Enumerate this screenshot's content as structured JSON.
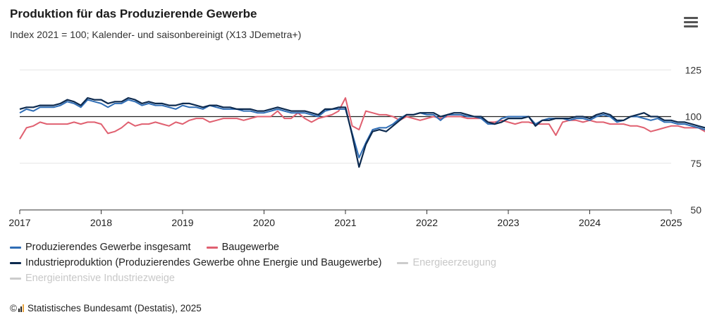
{
  "header": {
    "title": "Produktion für das Produzierende Gewerbe",
    "subtitle": "Index 2021 = 100; Kalender- und saisonbereinigt (X13 JDemetra+)",
    "menu_icon": "hamburger-menu-icon"
  },
  "source": {
    "copyright": "©",
    "text": "Statistisches Bundesamt (Destatis), 2025",
    "logo_icon": "destatis-logo-icon"
  },
  "colors": {
    "gesamt": "#2f6db5",
    "bau": "#e06070",
    "industrie": "#0d2a4f",
    "disabled": "#cccccc",
    "reference": "#222222",
    "grid": "#e6e6e6"
  },
  "chart_data": {
    "type": "line",
    "x_start": "2017-01",
    "frequency": "monthly",
    "x_ticks": [
      "2017",
      "2018",
      "2019",
      "2020",
      "2021",
      "2022",
      "2023",
      "2024",
      "2025"
    ],
    "y_ticks": [
      "50",
      "75",
      "100",
      "125"
    ],
    "ylim": [
      50,
      130
    ],
    "reference_line": 100,
    "grid": true,
    "legend_position": "bottom",
    "series": [
      {
        "name": "Produzierendes Gewerbe insgesamt",
        "color": "#2f6db5",
        "visible": true,
        "values": [
          102,
          104,
          103,
          105,
          105,
          105,
          106,
          108,
          107,
          105,
          109,
          108,
          107,
          105,
          107,
          107,
          109,
          108,
          106,
          107,
          106,
          106,
          105,
          104,
          106,
          105,
          105,
          104,
          106,
          105,
          104,
          104,
          104,
          103,
          103,
          102,
          102,
          103,
          104,
          103,
          102,
          102,
          102,
          101,
          100,
          103,
          104,
          104,
          104,
          91,
          78,
          86,
          93,
          94,
          94,
          96,
          99,
          101,
          101,
          102,
          101,
          101,
          98,
          101,
          101,
          101,
          100,
          100,
          99,
          96,
          96,
          99,
          100,
          100,
          100,
          100,
          96,
          98,
          99,
          99,
          99,
          98,
          99,
          99,
          98,
          100,
          101,
          100,
          97,
          98,
          100,
          100,
          99,
          98,
          99,
          97,
          97,
          96,
          96,
          95,
          94,
          93,
          95,
          95,
          94,
          94,
          92,
          93,
          92,
          92,
          93,
          92,
          92,
          91,
          92,
          91,
          92,
          92,
          92,
          92,
          91,
          93
        ],
        "labeled_values": []
      },
      {
        "name": "Baugewerbe",
        "color": "#e06070",
        "visible": true,
        "values": [
          88,
          94,
          95,
          97,
          96,
          96,
          96,
          96,
          97,
          96,
          97,
          97,
          96,
          91,
          92,
          94,
          97,
          95,
          96,
          96,
          97,
          96,
          95,
          97,
          96,
          98,
          99,
          99,
          97,
          98,
          99,
          99,
          99,
          98,
          99,
          100,
          100,
          100,
          103,
          99,
          99,
          102,
          99,
          97,
          99,
          100,
          101,
          103,
          110,
          95,
          93,
          103,
          102,
          101,
          101,
          100,
          98,
          100,
          99,
          98,
          99,
          100,
          99,
          100,
          100,
          100,
          99,
          99,
          99,
          97,
          97,
          98,
          97,
          96,
          97,
          97,
          96,
          96,
          96,
          90,
          97,
          98,
          98,
          97,
          98,
          97,
          97,
          96,
          96,
          96,
          95,
          95,
          94,
          92,
          93,
          94,
          95,
          95,
          94,
          94,
          94,
          92,
          92,
          92,
          93,
          91,
          92,
          91,
          91,
          91,
          92,
          92,
          92,
          91,
          91,
          92,
          91,
          92,
          92,
          91,
          92,
          93
        ],
        "labeled_values": []
      },
      {
        "name": "Industrieproduktion (Produzierendes Gewerbe ohne Energie und Baugewerbe)",
        "color": "#0d2a4f",
        "visible": true,
        "values": [
          104,
          105,
          105,
          106,
          106,
          106,
          107,
          109,
          108,
          106,
          110,
          109,
          109,
          107,
          108,
          108,
          110,
          109,
          107,
          108,
          107,
          107,
          106,
          106,
          107,
          107,
          106,
          105,
          106,
          106,
          105,
          105,
          104,
          104,
          104,
          103,
          103,
          104,
          105,
          104,
          103,
          103,
          103,
          102,
          101,
          104,
          104,
          105,
          105,
          90,
          73,
          85,
          92,
          93,
          92,
          95,
          98,
          101,
          101,
          102,
          102,
          102,
          100,
          101,
          102,
          102,
          101,
          100,
          100,
          97,
          96,
          97,
          99,
          99,
          99,
          100,
          95,
          98,
          98,
          99,
          99,
          99,
          100,
          100,
          99,
          101,
          102,
          101,
          98,
          98,
          100,
          101,
          102,
          100,
          100,
          98,
          98,
          97,
          97,
          96,
          95,
          94,
          96,
          96,
          95,
          95,
          93,
          94,
          93,
          93,
          94,
          94,
          93,
          92,
          94,
          92,
          93,
          93,
          93,
          93,
          91,
          93
        ],
        "labeled_values": []
      },
      {
        "name": "Energieerzeugung",
        "color": "#cccccc",
        "visible": false,
        "values": []
      },
      {
        "name": "Energieintensive Industriezweige",
        "color": "#cccccc",
        "visible": false,
        "values": []
      }
    ]
  }
}
